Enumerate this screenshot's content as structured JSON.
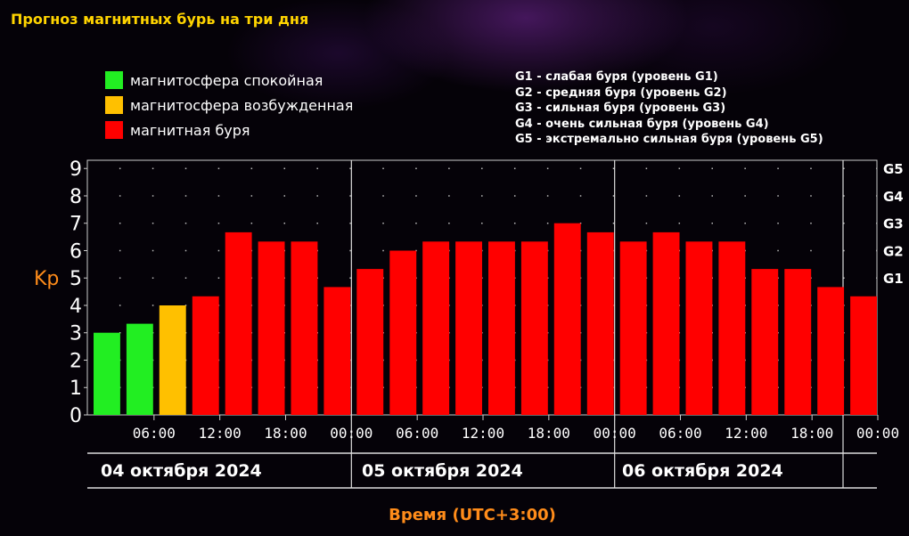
{
  "page": {
    "title": "Прогноз магнитных бурь на три дня"
  },
  "legend": {
    "items": [
      {
        "label": "магнитосфера спокойная",
        "color": "#22ee22"
      },
      {
        "label": "магнитосфера возбужденная",
        "color": "#ffc000"
      },
      {
        "label": "магнитная буря",
        "color": "#ff0000"
      }
    ]
  },
  "g_levels": [
    "G1 - слабая буря (уровень G1)",
    "G2 - средняя буря (уровень G2)",
    "G3 - сильная буря (уровень G3)",
    "G4 - очень сильная буря (уровень G4)",
    "G5 - экстремально сильная буря (уровень G5)"
  ],
  "chart_data": {
    "type": "bar",
    "title": "",
    "xlabel": "Время (UTC+3:00)",
    "ylabel": "Kp",
    "ylim": [
      0,
      9.3
    ],
    "y_ticks": [
      "0",
      "1",
      "2",
      "3",
      "4",
      "5",
      "6",
      "7",
      "8",
      "9"
    ],
    "right_ticks": [
      {
        "label": "G1",
        "value": 5
      },
      {
        "label": "G2",
        "value": 6
      },
      {
        "label": "G3",
        "value": 7
      },
      {
        "label": "G4",
        "value": 8
      },
      {
        "label": "G5",
        "value": 9
      }
    ],
    "time_ticks": [
      "06:00",
      "12:00",
      "18:00",
      "00:00",
      "06:00",
      "12:00",
      "18:00",
      "00:00",
      "06:00",
      "12:00",
      "18:00",
      "00:00"
    ],
    "days": [
      "04 октября 2024",
      "05 октября 2024",
      "06 октября 2024"
    ],
    "values": [
      3.0,
      3.33,
      4.0,
      4.33,
      6.67,
      6.33,
      6.33,
      4.67,
      5.33,
      6.0,
      6.33,
      6.33,
      6.33,
      6.33,
      7.0,
      6.67,
      6.33,
      6.67,
      6.33,
      6.33,
      5.33,
      5.33,
      4.67,
      4.33
    ],
    "bar_colors": [
      "#22ee22",
      "#22ee22",
      "#ffc000",
      "#ff0000",
      "#ff0000",
      "#ff0000",
      "#ff0000",
      "#ff0000",
      "#ff0000",
      "#ff0000",
      "#ff0000",
      "#ff0000",
      "#ff0000",
      "#ff0000",
      "#ff0000",
      "#ff0000",
      "#ff0000",
      "#ff0000",
      "#ff0000",
      "#ff0000",
      "#ff0000",
      "#ff0000",
      "#ff0000",
      "#ff0000"
    ],
    "grid": true,
    "legend_position": "top-left"
  }
}
